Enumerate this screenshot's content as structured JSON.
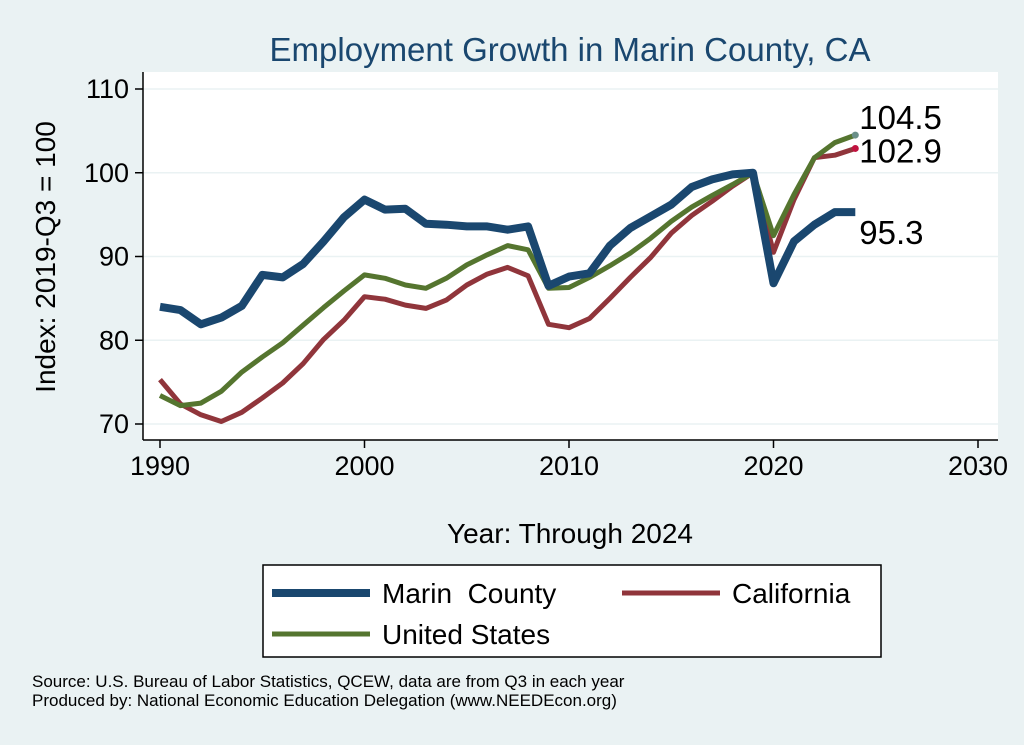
{
  "chart_data": {
    "type": "line",
    "title": "Employment Growth in Marin County, CA",
    "xlabel": "Year: Through 2024",
    "ylabel": "Index: 2019-Q3 = 100",
    "xlim": [
      1990,
      2030
    ],
    "ylim": [
      70,
      110
    ],
    "xticks": [
      "1990",
      "2000",
      "2010",
      "2020",
      "2030"
    ],
    "yticks": [
      "70",
      "80",
      "90",
      "100",
      "110"
    ],
    "grid": true,
    "legend_position": "bottom",
    "x": [
      1990,
      1991,
      1992,
      1993,
      1994,
      1995,
      1996,
      1997,
      1998,
      1999,
      2000,
      2001,
      2002,
      2003,
      2004,
      2005,
      2006,
      2007,
      2008,
      2009,
      2010,
      2011,
      2012,
      2013,
      2014,
      2015,
      2016,
      2017,
      2018,
      2019,
      2020,
      2021,
      2022,
      2023,
      2024
    ],
    "series": [
      {
        "name": "Marin  County",
        "color": "#1a476f",
        "values": [
          84.0,
          83.6,
          81.9,
          82.7,
          84.1,
          87.8,
          87.5,
          89.1,
          91.8,
          94.7,
          96.8,
          95.6,
          95.7,
          93.9,
          93.8,
          93.6,
          93.6,
          93.2,
          93.6,
          86.5,
          87.6,
          88.0,
          91.3,
          93.4,
          94.8,
          96.2,
          98.3,
          99.2,
          99.8,
          100.0,
          86.8,
          91.8,
          93.8,
          95.3,
          95.3
        ],
        "end_label": "95.3"
      },
      {
        "name": "California",
        "color": "#90353b",
        "values": [
          75.3,
          72.4,
          71.1,
          70.3,
          71.4,
          73.1,
          74.9,
          77.2,
          80.1,
          82.4,
          85.2,
          84.9,
          84.2,
          83.8,
          84.8,
          86.6,
          87.9,
          88.7,
          87.7,
          81.9,
          81.5,
          82.6,
          85.0,
          87.5,
          89.9,
          92.8,
          94.9,
          96.6,
          98.4,
          100.0,
          90.5,
          96.8,
          101.8,
          102.1,
          102.9
        ],
        "end_label": "102.9"
      },
      {
        "name": "United States",
        "color": "#55752f",
        "values": [
          73.4,
          72.2,
          72.5,
          73.9,
          76.2,
          78.0,
          79.7,
          81.8,
          83.9,
          85.9,
          87.8,
          87.4,
          86.6,
          86.2,
          87.4,
          89.0,
          90.2,
          91.3,
          90.8,
          86.2,
          86.3,
          87.5,
          88.9,
          90.4,
          92.2,
          94.2,
          95.9,
          97.3,
          98.6,
          100.0,
          92.5,
          97.4,
          101.8,
          103.6,
          104.5
        ],
        "end_label": "104.5"
      }
    ]
  },
  "notes": {
    "source": "Source: U.S. Bureau of Labor Statistics, QCEW, data are from Q3 in each year",
    "produced": "Produced by: National Economic Education Delegation (www.NEEDEcon.org)"
  },
  "colors": {
    "background": "#eaf2f3",
    "plot_background": "#ffffff",
    "grid": "#eaf2f3",
    "title": "#1a476f"
  }
}
